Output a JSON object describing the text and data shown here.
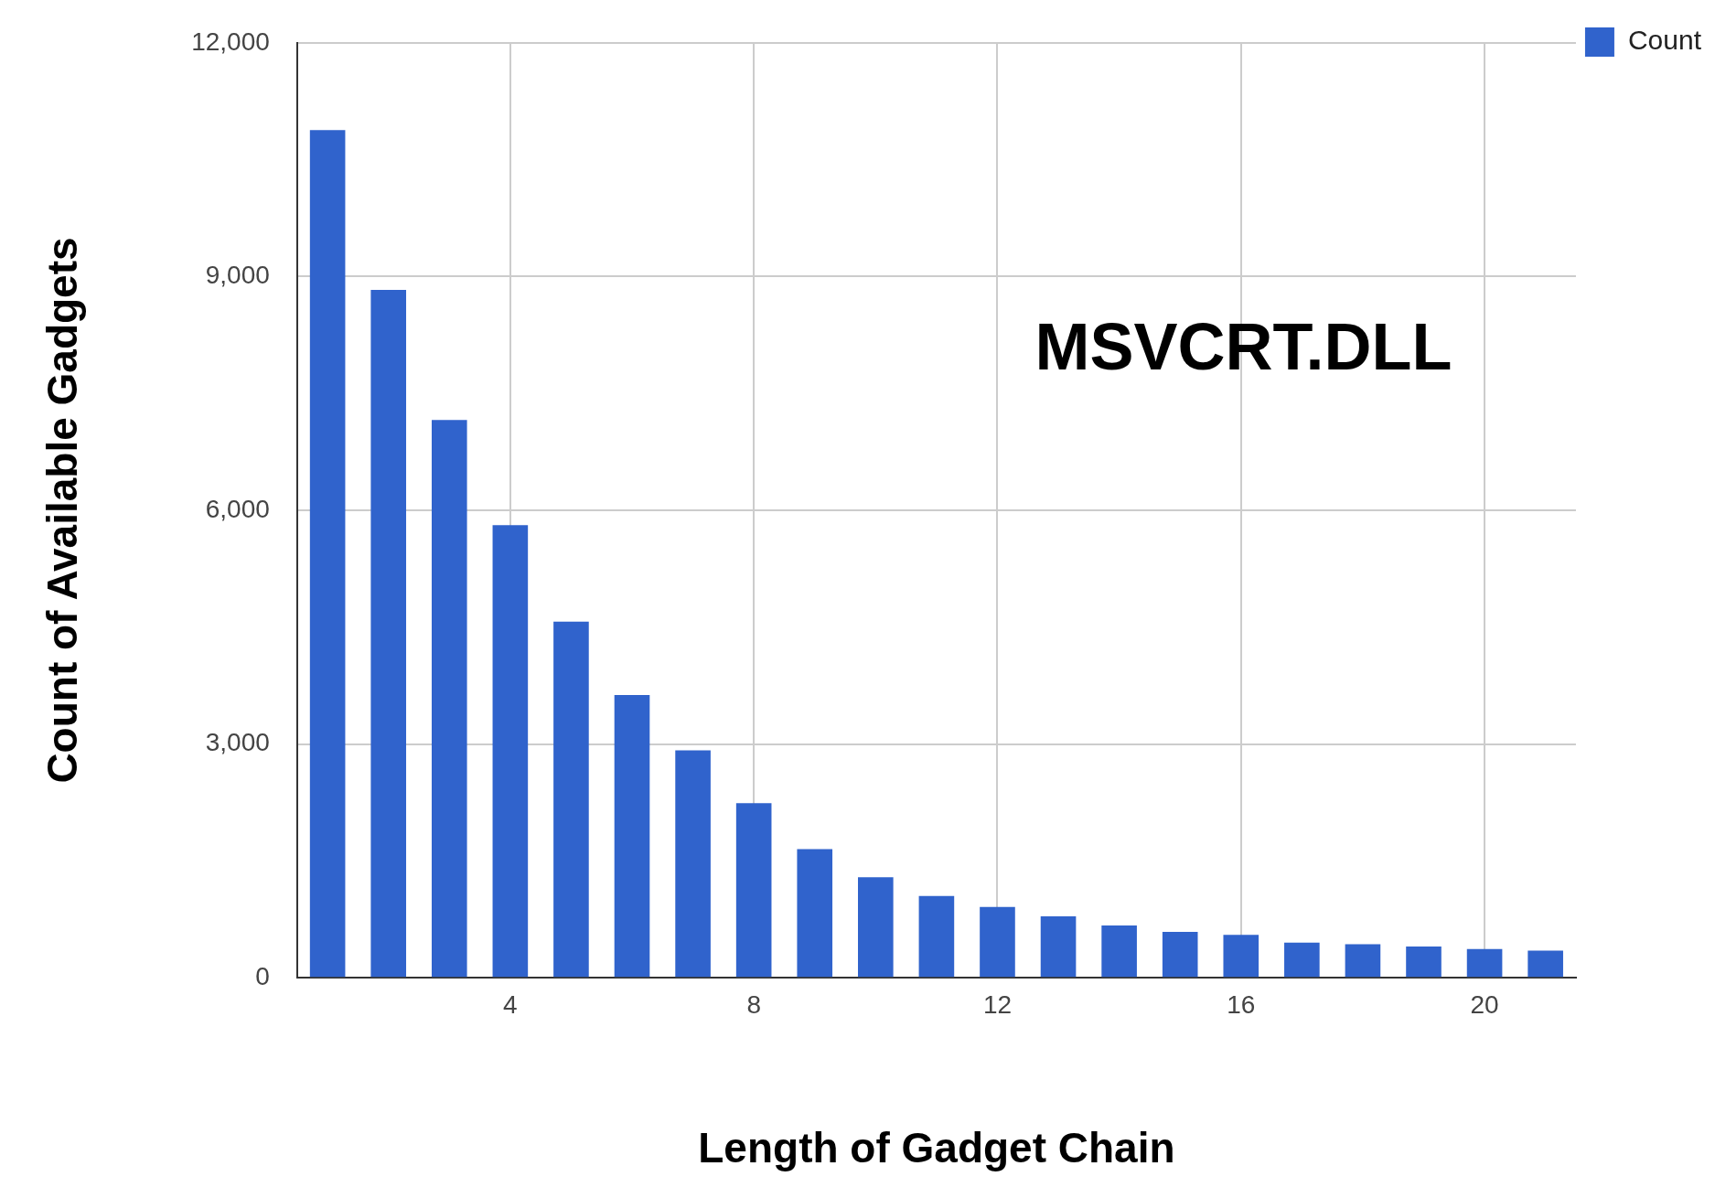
{
  "chart_data": {
    "type": "bar",
    "xlabel": "Length of Gadget Chain",
    "ylabel": "Count of Available Gadgets",
    "x": [
      1,
      2,
      3,
      4,
      5,
      6,
      7,
      8,
      9,
      10,
      11,
      12,
      13,
      14,
      15,
      16,
      17,
      18,
      19,
      20,
      21
    ],
    "series": [
      {
        "name": "Count",
        "color": "#3063cc",
        "values": [
          10880,
          8830,
          7160,
          5810,
          4570,
          3630,
          2920,
          2240,
          1650,
          1290,
          1050,
          910,
          790,
          670,
          590,
          550,
          450,
          430,
          400,
          370,
          350
        ]
      }
    ],
    "xlim": [
      0.5,
      21.5
    ],
    "xticks": [
      4,
      8,
      12,
      16,
      20
    ],
    "ylim": [
      0,
      12000
    ],
    "yticks": [
      0,
      {
        "value": 3000,
        "label": "3,000"
      },
      {
        "value": 6000,
        "label": "6,000"
      },
      {
        "value": 9000,
        "label": "9,000"
      },
      {
        "value": 12000,
        "label": "12,000"
      }
    ],
    "grid": true,
    "legend": "top right",
    "annotations": [
      "MSVCRT.DLL"
    ]
  }
}
